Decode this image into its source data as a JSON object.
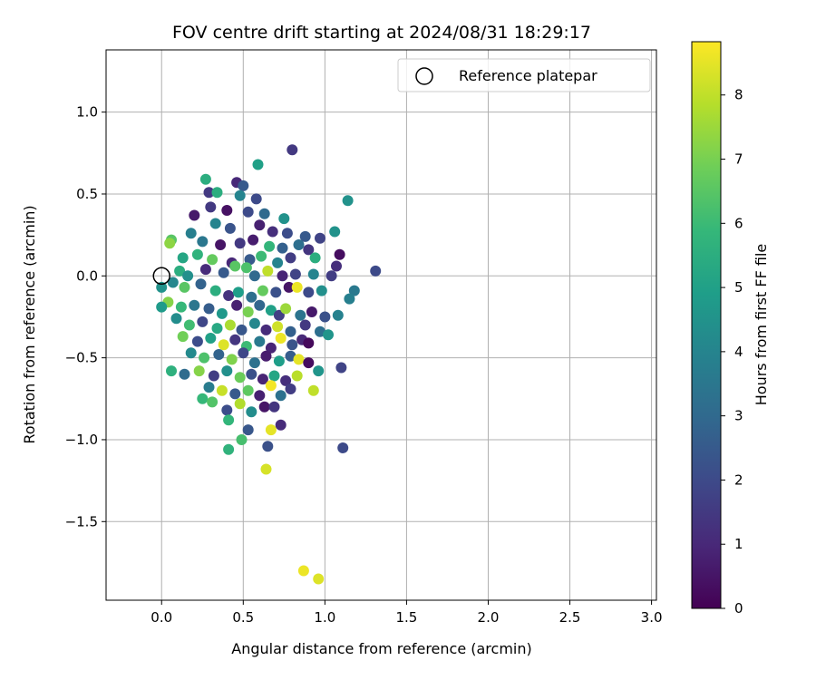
{
  "chart_data": {
    "type": "scatter",
    "title": "FOV centre drift starting at 2024/08/31 18:29:17",
    "xlabel": "Angular distance from reference (arcmin)",
    "ylabel": "Rotation from reference (arcmin)",
    "xlim": [
      -0.34,
      3.03
    ],
    "ylim": [
      -1.98,
      1.38
    ],
    "xticks": [
      "0.0",
      "0.5",
      "1.0",
      "1.5",
      "2.0",
      "2.5",
      "3.0"
    ],
    "xtick_values": [
      0,
      0.5,
      1.0,
      1.5,
      2.0,
      2.5,
      3.0
    ],
    "yticks": [
      "1.0",
      "0.5",
      "0.0",
      "−0.5",
      "−1.0",
      "−1.5"
    ],
    "ytick_values": [
      1.0,
      0.5,
      0.0,
      -0.5,
      -1.0,
      -1.5
    ],
    "grid": true,
    "legend": {
      "placement": "top-right",
      "entries": [
        "Reference platepar"
      ]
    },
    "reference_point": {
      "x": 0.0,
      "y": 0.0
    },
    "colorbar": {
      "label": "Hours from first FF file",
      "ticks": [
        "0",
        "1",
        "2",
        "3",
        "4",
        "5",
        "6",
        "7",
        "8"
      ],
      "tick_values": [
        0,
        1,
        2,
        3,
        4,
        5,
        6,
        7,
        8
      ],
      "range": [
        0,
        8.83
      ],
      "colormap": "viridis",
      "stops": [
        "#440154",
        "#482878",
        "#3e4989",
        "#31688e",
        "#26828e",
        "#1f9e89",
        "#35b779",
        "#6ece58",
        "#b5de2b",
        "#fde725"
      ]
    },
    "points": [
      [
        0.8,
        0.77,
        1.5
      ],
      [
        0.59,
        0.68,
        5.0
      ],
      [
        1.14,
        0.46,
        4.5
      ],
      [
        0.27,
        0.59,
        5.5
      ],
      [
        0.46,
        0.57,
        1.0
      ],
      [
        0.5,
        0.55,
        2.5
      ],
      [
        0.29,
        0.51,
        1.5
      ],
      [
        0.34,
        0.51,
        5.5
      ],
      [
        0.48,
        0.49,
        4.0
      ],
      [
        0.58,
        0.47,
        2.0
      ],
      [
        0.2,
        0.37,
        0.6
      ],
      [
        0.3,
        0.42,
        1.5
      ],
      [
        0.4,
        0.4,
        0.4
      ],
      [
        0.53,
        0.39,
        2.0
      ],
      [
        0.63,
        0.38,
        3.0
      ],
      [
        0.75,
        0.35,
        4.5
      ],
      [
        0.33,
        0.32,
        4.0
      ],
      [
        0.42,
        0.29,
        2.3
      ],
      [
        0.6,
        0.31,
        0.8
      ],
      [
        0.68,
        0.27,
        1.2
      ],
      [
        0.77,
        0.26,
        2.1
      ],
      [
        0.88,
        0.24,
        2.5
      ],
      [
        0.97,
        0.23,
        1.8
      ],
      [
        1.06,
        0.27,
        4.5
      ],
      [
        0.06,
        0.22,
        6.5
      ],
      [
        0.05,
        0.2,
        7.3
      ],
      [
        0.18,
        0.26,
        3.8
      ],
      [
        0.25,
        0.21,
        3.5
      ],
      [
        0.36,
        0.19,
        0.5
      ],
      [
        0.48,
        0.2,
        1.5
      ],
      [
        0.56,
        0.22,
        0.7
      ],
      [
        0.66,
        0.18,
        5.8
      ],
      [
        0.74,
        0.17,
        2.7
      ],
      [
        0.84,
        0.19,
        3.2
      ],
      [
        0.9,
        0.16,
        1.4
      ],
      [
        1.09,
        0.13,
        0.3
      ],
      [
        0.13,
        0.11,
        5.2
      ],
      [
        0.22,
        0.13,
        5.7
      ],
      [
        0.31,
        0.1,
        6.7
      ],
      [
        0.43,
        0.08,
        1.0
      ],
      [
        0.54,
        0.1,
        2.5
      ],
      [
        0.61,
        0.12,
        6.0
      ],
      [
        0.71,
        0.08,
        4.0
      ],
      [
        0.79,
        0.11,
        1.6
      ],
      [
        0.94,
        0.11,
        5.5
      ],
      [
        1.07,
        0.06,
        1.2
      ],
      [
        1.31,
        0.03,
        2.0
      ],
      [
        0.11,
        0.03,
        5.5
      ],
      [
        0.16,
        0.0,
        4.4
      ],
      [
        0.27,
        0.04,
        1.1
      ],
      [
        0.38,
        0.02,
        2.5
      ],
      [
        0.45,
        0.06,
        6.5
      ],
      [
        0.52,
        0.05,
        6.3
      ],
      [
        0.57,
        0.0,
        3.0
      ],
      [
        0.65,
        0.03,
        8.0
      ],
      [
        0.74,
        0.0,
        0.9
      ],
      [
        0.82,
        0.01,
        1.8
      ],
      [
        0.93,
        0.01,
        4.0
      ],
      [
        1.04,
        0.0,
        1.6
      ],
      [
        1.18,
        -0.09,
        3.6
      ],
      [
        0.0,
        -0.07,
        4.5
      ],
      [
        0.07,
        -0.04,
        4.1
      ],
      [
        0.14,
        -0.07,
        6.5
      ],
      [
        0.24,
        -0.05,
        2.8
      ],
      [
        0.33,
        -0.09,
        5.5
      ],
      [
        0.41,
        -0.12,
        1.3
      ],
      [
        0.47,
        -0.1,
        4.9
      ],
      [
        0.55,
        -0.13,
        3.2
      ],
      [
        0.62,
        -0.09,
        6.7
      ],
      [
        0.7,
        -0.1,
        2.2
      ],
      [
        0.78,
        -0.07,
        0.5
      ],
      [
        0.83,
        -0.07,
        8.6
      ],
      [
        0.9,
        -0.1,
        2.0
      ],
      [
        0.98,
        -0.09,
        4.4
      ],
      [
        1.15,
        -0.14,
        3.8
      ],
      [
        0.04,
        -0.16,
        7.2
      ],
      [
        0.12,
        -0.19,
        5.9
      ],
      [
        0.2,
        -0.18,
        3.5
      ],
      [
        0.29,
        -0.2,
        2.6
      ],
      [
        0.37,
        -0.23,
        4.7
      ],
      [
        0.46,
        -0.18,
        0.8
      ],
      [
        0.53,
        -0.22,
        7.0
      ],
      [
        0.6,
        -0.18,
        2.9
      ],
      [
        0.67,
        -0.21,
        5.0
      ],
      [
        0.72,
        -0.24,
        1.7
      ],
      [
        0.76,
        -0.2,
        7.5
      ],
      [
        0.85,
        -0.24,
        3.4
      ],
      [
        0.92,
        -0.22,
        0.6
      ],
      [
        1.0,
        -0.25,
        2.2
      ],
      [
        1.08,
        -0.24,
        3.9
      ],
      [
        0.0,
        -0.19,
        4.8
      ],
      [
        0.09,
        -0.26,
        4.3
      ],
      [
        0.17,
        -0.3,
        6.1
      ],
      [
        0.25,
        -0.28,
        1.9
      ],
      [
        0.34,
        -0.32,
        5.3
      ],
      [
        0.42,
        -0.3,
        7.7
      ],
      [
        0.49,
        -0.33,
        2.4
      ],
      [
        0.57,
        -0.29,
        4.1
      ],
      [
        0.64,
        -0.33,
        1.1
      ],
      [
        0.71,
        -0.31,
        8.2
      ],
      [
        0.79,
        -0.34,
        2.7
      ],
      [
        0.88,
        -0.3,
        1.5
      ],
      [
        0.97,
        -0.34,
        3.2
      ],
      [
        1.02,
        -0.36,
        4.6
      ],
      [
        0.13,
        -0.37,
        6.9
      ],
      [
        0.22,
        -0.4,
        2.1
      ],
      [
        0.3,
        -0.38,
        5.0
      ],
      [
        0.38,
        -0.42,
        8.4
      ],
      [
        0.45,
        -0.39,
        1.4
      ],
      [
        0.52,
        -0.43,
        6.0
      ],
      [
        0.6,
        -0.4,
        3.6
      ],
      [
        0.67,
        -0.44,
        0.9
      ],
      [
        0.73,
        -0.38,
        8.6
      ],
      [
        0.8,
        -0.42,
        2.3
      ],
      [
        0.86,
        -0.39,
        1.0
      ],
      [
        0.9,
        -0.41,
        0.2
      ],
      [
        0.18,
        -0.47,
        4.2
      ],
      [
        0.26,
        -0.5,
        6.3
      ],
      [
        0.35,
        -0.48,
        2.8
      ],
      [
        0.43,
        -0.51,
        7.1
      ],
      [
        0.5,
        -0.47,
        1.9
      ],
      [
        0.57,
        -0.53,
        3.3
      ],
      [
        0.64,
        -0.49,
        0.7
      ],
      [
        0.72,
        -0.52,
        4.9
      ],
      [
        0.79,
        -0.49,
        2.6
      ],
      [
        0.84,
        -0.51,
        8.5
      ],
      [
        0.9,
        -0.53,
        0.3
      ],
      [
        1.1,
        -0.56,
        1.8
      ],
      [
        0.06,
        -0.58,
        5.6
      ],
      [
        0.14,
        -0.6,
        3.1
      ],
      [
        0.23,
        -0.58,
        7.2
      ],
      [
        0.32,
        -0.61,
        1.6
      ],
      [
        0.4,
        -0.58,
        4.4
      ],
      [
        0.48,
        -0.62,
        6.8
      ],
      [
        0.55,
        -0.6,
        2.2
      ],
      [
        0.62,
        -0.63,
        0.9
      ],
      [
        0.69,
        -0.61,
        5.2
      ],
      [
        0.76,
        -0.64,
        1.2
      ],
      [
        0.83,
        -0.61,
        7.9
      ],
      [
        0.96,
        -0.58,
        4.6
      ],
      [
        0.29,
        -0.68,
        3.7
      ],
      [
        0.37,
        -0.7,
        8.1
      ],
      [
        0.45,
        -0.72,
        2.5
      ],
      [
        0.53,
        -0.7,
        6.6
      ],
      [
        0.6,
        -0.73,
        0.8
      ],
      [
        0.67,
        -0.67,
        8.7
      ],
      [
        0.73,
        -0.73,
        3.3
      ],
      [
        0.79,
        -0.69,
        1.6
      ],
      [
        0.93,
        -0.7,
        8.0
      ],
      [
        0.25,
        -0.75,
        5.9
      ],
      [
        0.31,
        -0.77,
        6.4
      ],
      [
        0.4,
        -0.82,
        2.1
      ],
      [
        0.48,
        -0.78,
        7.8
      ],
      [
        0.55,
        -0.83,
        4.3
      ],
      [
        0.63,
        -0.8,
        0.5
      ],
      [
        0.69,
        -0.8,
        1.4
      ],
      [
        0.41,
        -0.88,
        5.8
      ],
      [
        0.53,
        -0.94,
        2.4
      ],
      [
        0.67,
        -0.94,
        8.5
      ],
      [
        0.73,
        -0.91,
        1.1
      ],
      [
        0.49,
        -1.0,
        6.2
      ],
      [
        0.41,
        -1.06,
        5.7
      ],
      [
        0.65,
        -1.04,
        2.2
      ],
      [
        1.11,
        -1.05,
        2.0
      ],
      [
        0.64,
        -1.18,
        8.3
      ],
      [
        0.87,
        -1.8,
        8.6
      ],
      [
        0.96,
        -1.85,
        8.4
      ]
    ]
  }
}
